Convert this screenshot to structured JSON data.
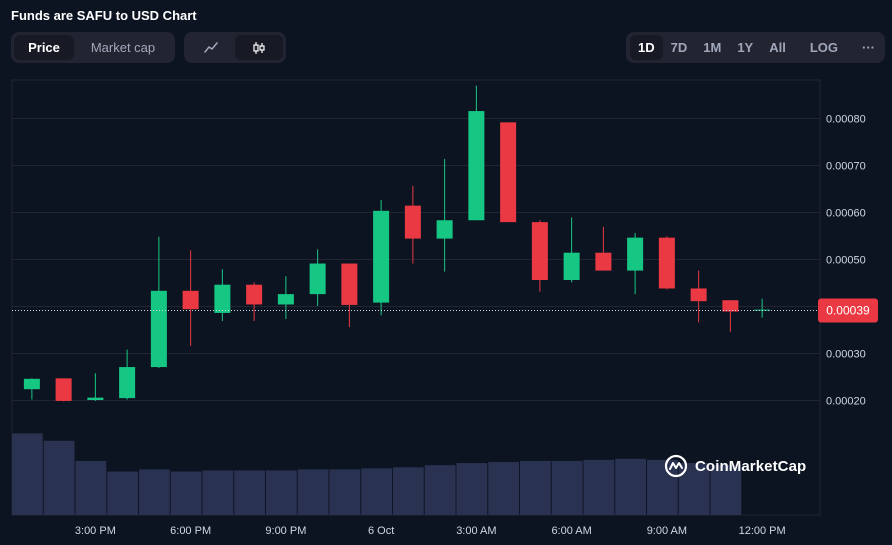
{
  "title": "Funds are SAFU to USD Chart",
  "chart_type_tabs": [
    {
      "label": "Price",
      "active": true
    },
    {
      "label": "Market cap",
      "active": false
    }
  ],
  "chart_style_icons": [
    {
      "icon": "line-chart-icon",
      "active": false
    },
    {
      "icon": "candlestick-icon",
      "active": true
    }
  ],
  "time_ranges": [
    {
      "label": "1D",
      "active": true
    },
    {
      "label": "7D",
      "active": false
    },
    {
      "label": "1M",
      "active": false
    },
    {
      "label": "1Y",
      "active": false
    },
    {
      "label": "All",
      "active": false
    },
    {
      "label": "LOG",
      "active": false
    }
  ],
  "more_label": "···",
  "watermark": "CoinMarketCap",
  "colors": {
    "up": "#16c784",
    "down": "#ea3943",
    "volume": "#2a3252",
    "grid": "#222531",
    "axis_text": "#a1a7bb",
    "current_price_bg": "#ea3943"
  },
  "chart_data": {
    "type": "candlestick",
    "title": "Funds are SAFU to USD Chart",
    "ylim": [
      0.0002,
      0.00088
    ],
    "y_ticks": [
      "0.00020",
      "0.00030",
      "0.00040",
      "0.00050",
      "0.00060",
      "0.00070",
      "0.00080"
    ],
    "x_ticks": [
      "3:00 PM",
      "6:00 PM",
      "9:00 PM",
      "6 Oct",
      "3:00 AM",
      "6:00 AM",
      "9:00 AM",
      "12:00 PM"
    ],
    "current_price": "0.00039",
    "current_price_value": 0.000392,
    "candles": [
      {
        "time": "12:00 PM",
        "open": 0.000223,
        "high": 0.000246,
        "low": 0.000201,
        "close": 0.000245
      },
      {
        "time": "1:00 PM",
        "open": 0.000246,
        "high": 0.000246,
        "low": 0.000197,
        "close": 0.000198
      },
      {
        "time": "2:00 PM",
        "open": 0.0002,
        "high": 0.000257,
        "low": 0.000198,
        "close": 0.000205
      },
      {
        "time": "3:00 PM",
        "open": 0.000204,
        "high": 0.000307,
        "low": 0.000201,
        "close": 0.00027
      },
      {
        "time": "4:00 PM",
        "open": 0.00027,
        "high": 0.000547,
        "low": 0.000268,
        "close": 0.000432
      },
      {
        "time": "5:00 PM",
        "open": 0.000432,
        "high": 0.000518,
        "low": 0.000315,
        "close": 0.000393
      },
      {
        "time": "6:00 PM",
        "open": 0.000385,
        "high": 0.000478,
        "low": 0.000368,
        "close": 0.000445
      },
      {
        "time": "7:00 PM",
        "open": 0.000445,
        "high": 0.00045,
        "low": 0.000368,
        "close": 0.000403
      },
      {
        "time": "8:00 PM",
        "open": 0.000403,
        "high": 0.000463,
        "low": 0.000372,
        "close": 0.000425
      },
      {
        "time": "9:00 PM",
        "open": 0.000425,
        "high": 0.00052,
        "low": 0.0004,
        "close": 0.00049
      },
      {
        "time": "10:00 PM",
        "open": 0.00049,
        "high": 0.00049,
        "low": 0.000355,
        "close": 0.000402
      },
      {
        "time": "11:00 PM",
        "open": 0.000407,
        "high": 0.000625,
        "low": 0.00038,
        "close": 0.000602
      },
      {
        "time": "6 Oct",
        "open": 0.000613,
        "high": 0.000655,
        "low": 0.00049,
        "close": 0.000543
      },
      {
        "time": "1:00 AM",
        "open": 0.000543,
        "high": 0.000712,
        "low": 0.000473,
        "close": 0.000582
      },
      {
        "time": "2:00 AM",
        "open": 0.000582,
        "high": 0.000868,
        "low": 0.000582,
        "close": 0.000814
      },
      {
        "time": "3:00 AM",
        "open": 0.00079,
        "high": 0.00079,
        "low": 0.000578,
        "close": 0.000578
      },
      {
        "time": "4:00 AM",
        "open": 0.000578,
        "high": 0.000582,
        "low": 0.00043,
        "close": 0.000455
      },
      {
        "time": "5:00 AM",
        "open": 0.000455,
        "high": 0.000588,
        "low": 0.00045,
        "close": 0.000513
      },
      {
        "time": "6:00 AM",
        "open": 0.000513,
        "high": 0.000568,
        "low": 0.000475,
        "close": 0.000475
      },
      {
        "time": "7:00 AM",
        "open": 0.000475,
        "high": 0.000555,
        "low": 0.000425,
        "close": 0.000545
      },
      {
        "time": "8:00 AM",
        "open": 0.000545,
        "high": 0.000548,
        "low": 0.000435,
        "close": 0.000437
      },
      {
        "time": "9:00 AM",
        "open": 0.000437,
        "high": 0.000475,
        "low": 0.000365,
        "close": 0.00041
      },
      {
        "time": "10:00 AM",
        "open": 0.000412,
        "high": 0.000412,
        "low": 0.000345,
        "close": 0.000388
      },
      {
        "time": "11:00 AM",
        "open": 0.000392,
        "high": 0.000415,
        "low": 0.000375,
        "close": 0.000392
      }
    ],
    "volume_relative": [
      0.77,
      0.7,
      0.51,
      0.41,
      0.43,
      0.41,
      0.42,
      0.42,
      0.42,
      0.43,
      0.43,
      0.44,
      0.45,
      0.47,
      0.49,
      0.5,
      0.51,
      0.51,
      0.52,
      0.53,
      0.52,
      0.49,
      0.47,
      0.0
    ],
    "y_axis_position": "right",
    "grid": true
  }
}
